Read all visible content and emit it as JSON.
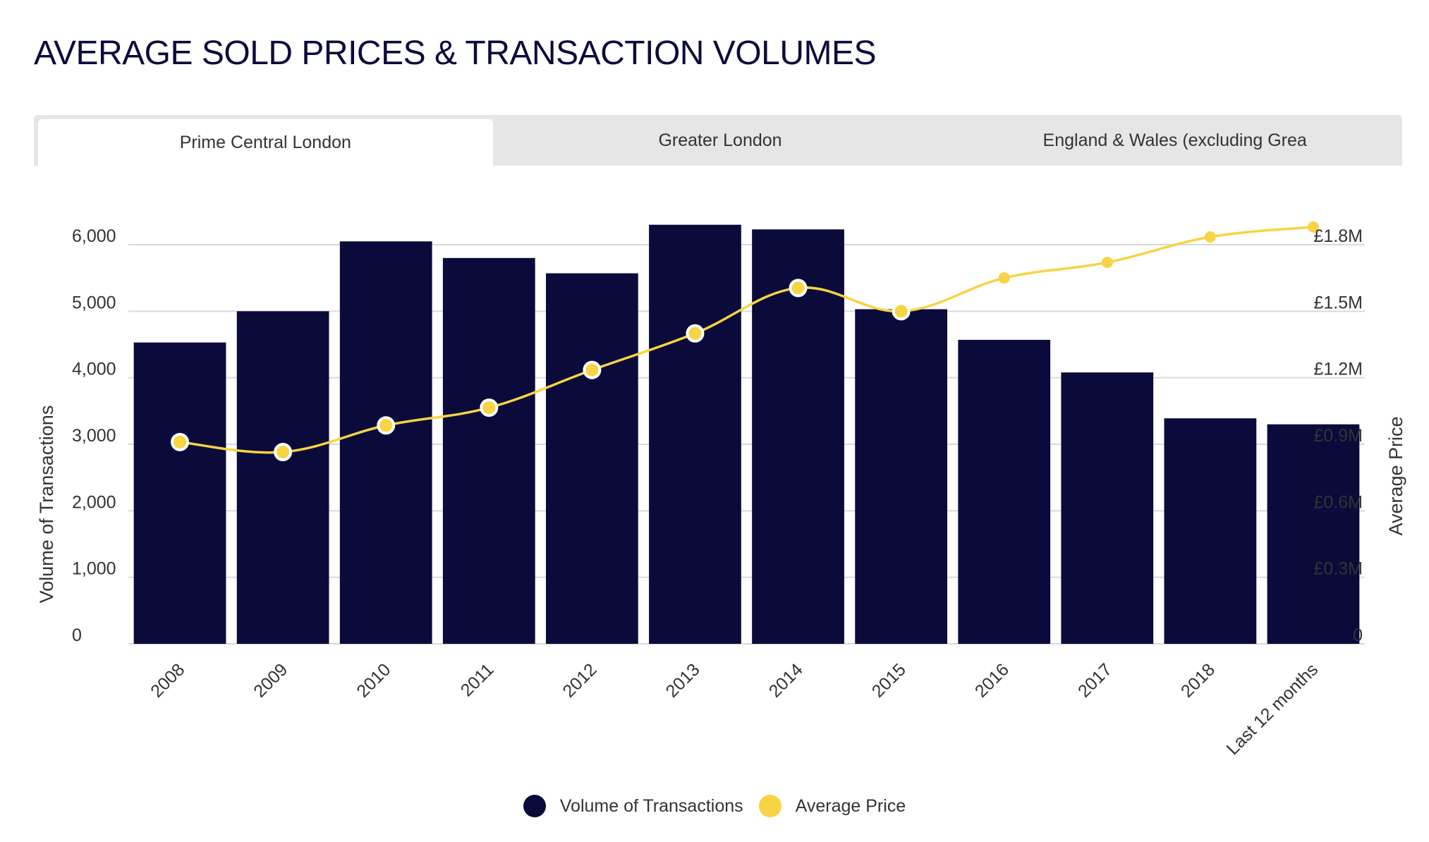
{
  "title": "AVERAGE SOLD PRICES & TRANSACTION VOLUMES",
  "tabs": [
    {
      "label": "Prime Central London",
      "active": true
    },
    {
      "label": "Greater London",
      "active": false
    },
    {
      "label": "England & Wales (excluding Grea",
      "active": false
    }
  ],
  "colors": {
    "bar": "#0a0b3a",
    "line": "#f7d443",
    "grid": "#d9d9d9",
    "tab_bg": "#e6e6e6"
  },
  "chart_data": {
    "type": "bar",
    "categories": [
      "2008",
      "2009",
      "2010",
      "2011",
      "2012",
      "2013",
      "2014",
      "2015",
      "2016",
      "2017",
      "2018",
      "Last 12 months"
    ],
    "series": [
      {
        "name": "Volume of Transactions",
        "type": "bar",
        "axis": "left",
        "values": [
          4530,
          5000,
          6050,
          5800,
          5570,
          6300,
          6230,
          5030,
          4570,
          4080,
          3390,
          3300
        ]
      },
      {
        "name": "Average Price",
        "type": "line",
        "axis": "right",
        "values": [
          910000,
          865000,
          985000,
          1065000,
          1235000,
          1400000,
          1605000,
          1500000,
          1650000,
          1720000,
          1835000,
          1880000
        ]
      }
    ],
    "ylabel": "Volume of Transactions",
    "y2label": "Average Price",
    "ylim": [
      0,
      6000
    ],
    "y2lim": [
      0,
      1800000
    ],
    "yticks": [
      "0",
      "1,000",
      "2,000",
      "3,000",
      "4,000",
      "5,000",
      "6,000"
    ],
    "y2ticks": [
      "0",
      "£0.3M",
      "£0.6M",
      "£0.9M",
      "£1.2M",
      "£1.5M",
      "£1.8M"
    ],
    "grid": true,
    "legend_position": "bottom"
  }
}
